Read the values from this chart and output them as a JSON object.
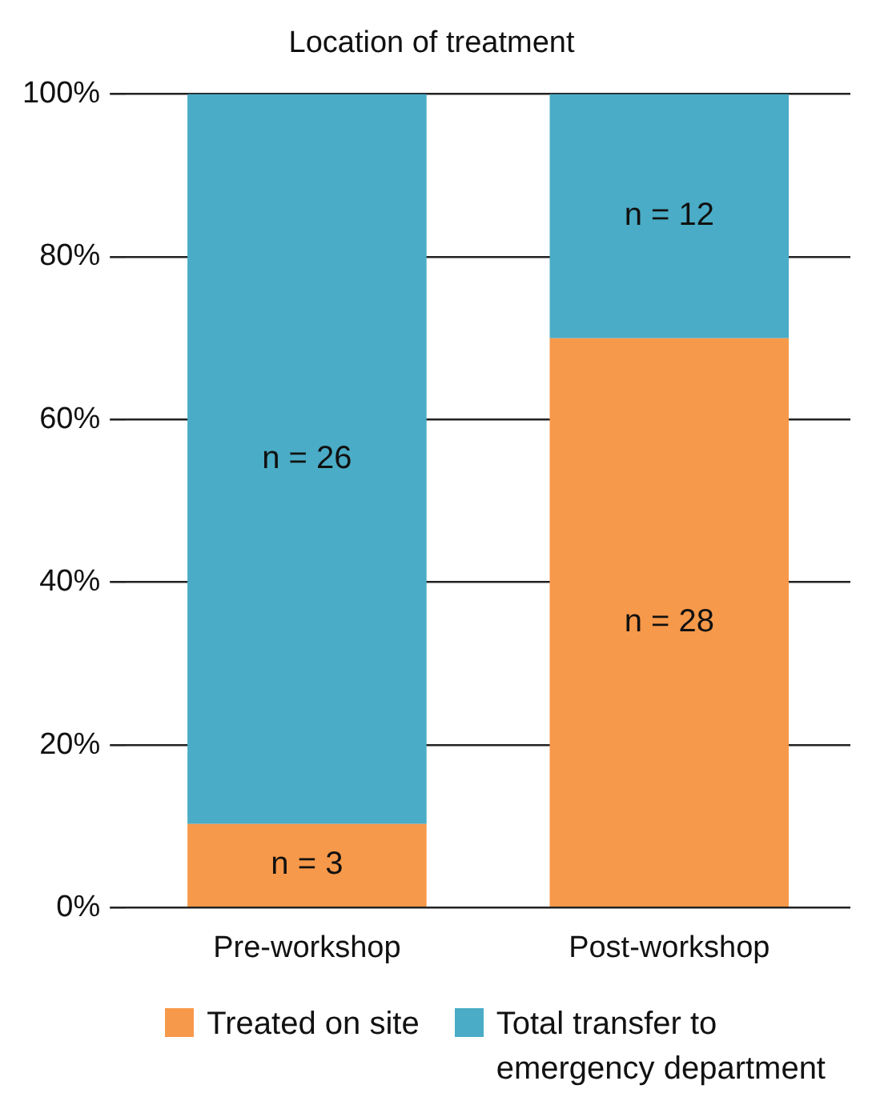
{
  "chart_data": {
    "type": "bar",
    "title": "Location of treatment",
    "categories": [
      "Pre-workshop",
      "Post-workshop"
    ],
    "stacked": true,
    "series": [
      {
        "name": "Treated on site",
        "color": "#f7994a",
        "values": [
          10.3,
          70
        ]
      },
      {
        "name": "Total transfer to emergency department",
        "color": "#4aacc6",
        "values": [
          89.7,
          30
        ]
      }
    ],
    "annotations": [
      "n = 3",
      "n = 28",
      "n = 26",
      "n = 12"
    ],
    "ylim": [
      0,
      100
    ],
    "yticks": [
      {
        "value": 0,
        "label": "0%"
      },
      {
        "value": 20,
        "label": "20%"
      },
      {
        "value": 40,
        "label": "40%"
      },
      {
        "value": 60,
        "label": "60%"
      },
      {
        "value": 80,
        "label": "80%"
      },
      {
        "value": 100,
        "label": "100%"
      }
    ],
    "grid": "y",
    "legend": "bottom"
  }
}
